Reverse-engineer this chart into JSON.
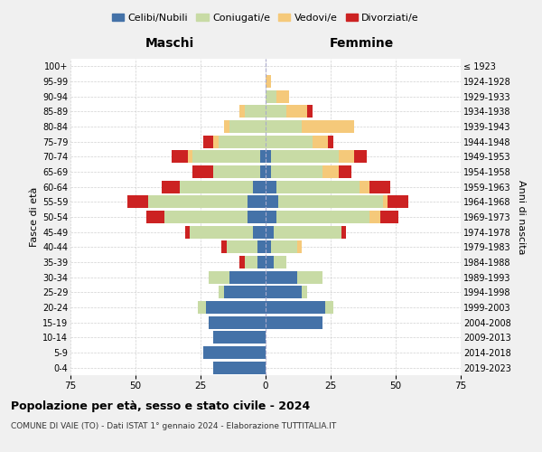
{
  "age_groups": [
    "0-4",
    "5-9",
    "10-14",
    "15-19",
    "20-24",
    "25-29",
    "30-34",
    "35-39",
    "40-44",
    "45-49",
    "50-54",
    "55-59",
    "60-64",
    "65-69",
    "70-74",
    "75-79",
    "80-84",
    "85-89",
    "90-94",
    "95-99",
    "100+"
  ],
  "birth_years": [
    "2019-2023",
    "2014-2018",
    "2009-2013",
    "2004-2008",
    "1999-2003",
    "1994-1998",
    "1989-1993",
    "1984-1988",
    "1979-1983",
    "1974-1978",
    "1969-1973",
    "1964-1968",
    "1959-1963",
    "1954-1958",
    "1949-1953",
    "1944-1948",
    "1939-1943",
    "1934-1938",
    "1929-1933",
    "1924-1928",
    "≤ 1923"
  ],
  "colors": {
    "celibi": "#4472a8",
    "coniugati": "#c8dba5",
    "vedovi": "#f5c97a",
    "divorziati": "#cc2222"
  },
  "maschi": {
    "celibi": [
      20,
      24,
      20,
      22,
      23,
      16,
      14,
      3,
      3,
      5,
      7,
      7,
      5,
      2,
      2,
      0,
      0,
      0,
      0,
      0,
      0
    ],
    "coniugati": [
      0,
      0,
      0,
      0,
      3,
      2,
      8,
      5,
      12,
      24,
      32,
      38,
      28,
      18,
      26,
      18,
      14,
      8,
      0,
      0,
      0
    ],
    "vedovi": [
      0,
      0,
      0,
      0,
      0,
      0,
      0,
      0,
      0,
      0,
      0,
      0,
      0,
      0,
      2,
      2,
      2,
      2,
      0,
      0,
      0
    ],
    "divorziati": [
      0,
      0,
      0,
      0,
      0,
      0,
      0,
      2,
      2,
      2,
      7,
      8,
      7,
      8,
      6,
      4,
      0,
      0,
      0,
      0,
      0
    ]
  },
  "femmine": {
    "nubili": [
      0,
      0,
      0,
      22,
      23,
      14,
      12,
      3,
      2,
      3,
      4,
      5,
      4,
      2,
      2,
      0,
      0,
      0,
      0,
      0,
      0
    ],
    "coniugate": [
      0,
      0,
      0,
      0,
      3,
      2,
      10,
      5,
      10,
      26,
      36,
      40,
      32,
      20,
      26,
      18,
      14,
      8,
      4,
      0,
      0
    ],
    "vedove": [
      0,
      0,
      0,
      0,
      0,
      0,
      0,
      0,
      2,
      0,
      4,
      2,
      4,
      6,
      6,
      6,
      20,
      8,
      5,
      2,
      0
    ],
    "divorziate": [
      0,
      0,
      0,
      0,
      0,
      0,
      0,
      0,
      0,
      2,
      7,
      8,
      8,
      5,
      5,
      2,
      0,
      2,
      0,
      0,
      0
    ]
  },
  "title": "Popolazione per età, sesso e stato civile - 2024",
  "subtitle": "COMUNE DI VAIE (TO) - Dati ISTAT 1° gennaio 2024 - Elaborazione TUTTITALIA.IT",
  "xlabel_left": "Maschi",
  "xlabel_right": "Femmine",
  "ylabel_left": "Fasce di età",
  "ylabel_right": "Anni di nascita",
  "xlim": 75,
  "background_color": "#f0f0f0",
  "grid_color": "#cccccc",
  "plot_bg": "#ffffff"
}
